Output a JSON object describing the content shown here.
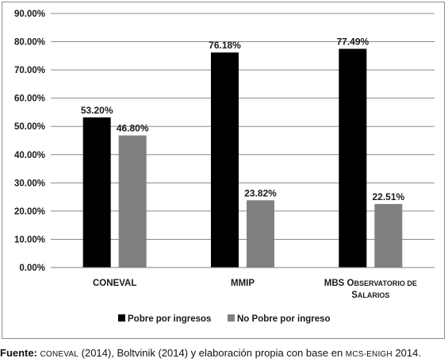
{
  "chart_data": {
    "type": "bar",
    "categories": [
      {
        "label_parts": [
          [
            "CONEVAL",
            ""
          ]
        ]
      },
      {
        "label_parts": [
          [
            "MMIP",
            ""
          ]
        ]
      },
      {
        "label_parts": [
          [
            "MBS O",
            "BSERVATORIO DE"
          ],
          [
            "S",
            "ALARIOS"
          ]
        ]
      }
    ],
    "category_names": [
      "CONEVAL",
      "MMIP",
      "MBS Observatorio de Salarios"
    ],
    "series": [
      {
        "name": "Pobre por ingresos",
        "color": "#000000",
        "values": [
          53.2,
          76.18,
          77.49
        ],
        "labels": [
          "53.20%",
          "76.18%",
          "77.49%"
        ]
      },
      {
        "name": "No Pobre por ingreso",
        "color": "#808080",
        "values": [
          46.8,
          23.82,
          22.51
        ],
        "labels": [
          "46.80%",
          "23.82%",
          "22.51%"
        ]
      }
    ],
    "ylim": [
      0,
      90
    ],
    "y_ticks": [
      "0.00%",
      "10.00%",
      "20.00%",
      "30.00%",
      "40.00%",
      "50.00%",
      "60.00%",
      "70.00%",
      "80.00%",
      "90.00%"
    ],
    "grid": true,
    "legend_position": "bottom"
  },
  "caption": {
    "label": "Fuente:",
    "parts": [
      {
        "text": " ",
        "sc": false
      },
      {
        "text": "CONEVAL",
        "sc": true
      },
      {
        "text": " (2014), Boltvinik (2014) y elaboración propia con base en ",
        "sc": false
      },
      {
        "text": "MCS-ENIGH",
        "sc": true
      },
      {
        "text": " 2014.",
        "sc": false
      }
    ]
  }
}
